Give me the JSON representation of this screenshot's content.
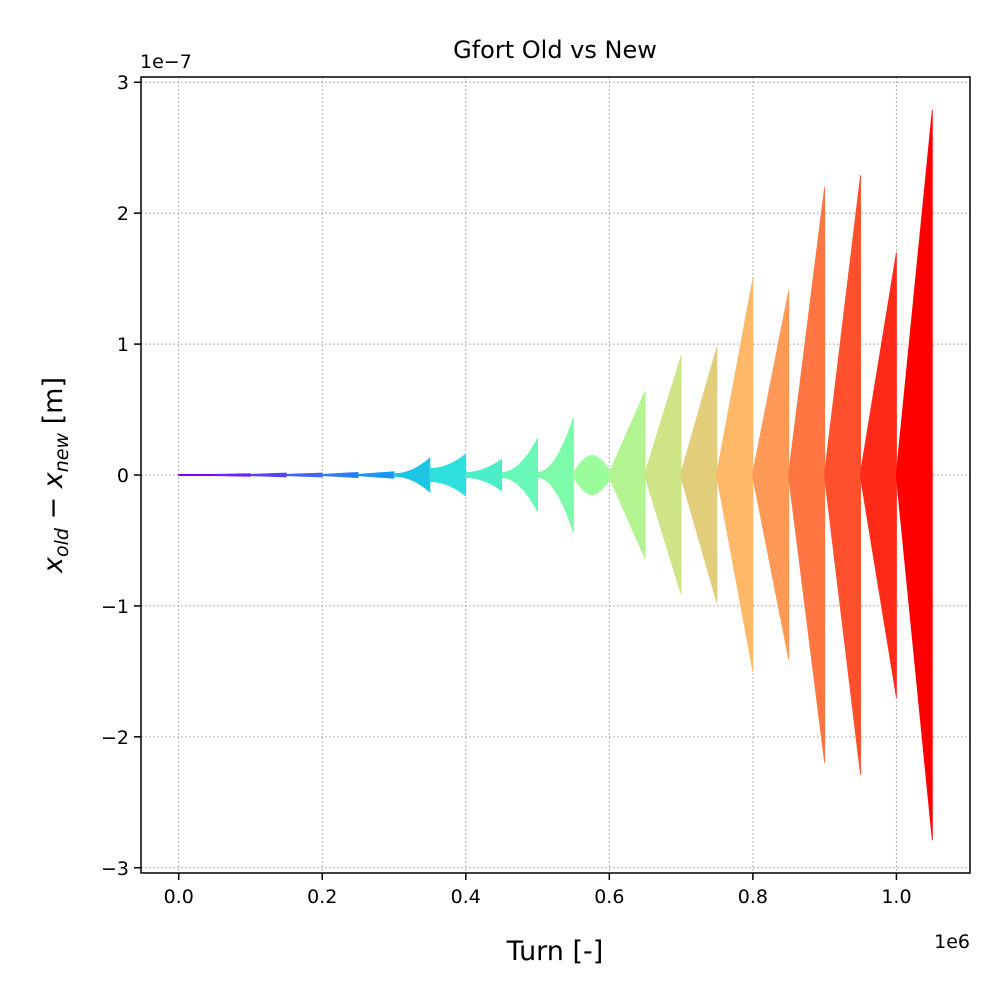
{
  "chart_data": {
    "type": "area",
    "title": "Gfort Old vs New",
    "xlabel": "Turn [-]",
    "ylabel": "x_old − x_new [m]",
    "ylabel_parts": {
      "base1": "x",
      "sub1": "old",
      "op": " − ",
      "base2": "x",
      "sub2": "new",
      "unit": " [m]"
    },
    "x_scale_label": "1e6",
    "y_scale_label": "1e−7",
    "xlim": [
      -0.0525,
      1.1025
    ],
    "ylim": [
      -3.04,
      3.04
    ],
    "xticks": [
      0.0,
      0.2,
      0.4,
      0.6,
      0.8,
      1.0
    ],
    "xtick_labels": [
      "0.0",
      "0.2",
      "0.4",
      "0.6",
      "0.8",
      "1.0"
    ],
    "yticks": [
      -3,
      -2,
      -1,
      0,
      1,
      2,
      3
    ],
    "ytick_labels": [
      "−3",
      "−2",
      "−1",
      "0",
      "1",
      "2",
      "3"
    ],
    "grid": true,
    "series": [
      {
        "x_start": 0.0,
        "x_end": 0.05,
        "amp_start": 0.005,
        "amp_end": 0.005,
        "shape": "linear",
        "color": "#7f00ff"
      },
      {
        "x_start": 0.05,
        "x_end": 0.1,
        "amp_start": 0.005,
        "amp_end": 0.01,
        "shape": "linear",
        "color": "#6a22fe"
      },
      {
        "x_start": 0.1,
        "x_end": 0.15,
        "amp_start": 0.005,
        "amp_end": 0.015,
        "shape": "linear",
        "color": "#5543fc"
      },
      {
        "x_start": 0.15,
        "x_end": 0.2,
        "amp_start": 0.005,
        "amp_end": 0.015,
        "shape": "linear",
        "color": "#4064f8"
      },
      {
        "x_start": 0.2,
        "x_end": 0.25,
        "amp_start": 0.005,
        "amp_end": 0.02,
        "shape": "linear",
        "color": "#2c7ef2"
      },
      {
        "x_start": 0.25,
        "x_end": 0.3,
        "amp_start": 0.005,
        "amp_end": 0.025,
        "shape": "linear",
        "color": "#1996f3"
      },
      {
        "x_start": 0.3,
        "x_end": 0.35,
        "amp_start": 0.01,
        "amp_end": 0.13,
        "shape": "concave",
        "color": "#1ec5e2"
      },
      {
        "x_start": 0.35,
        "x_end": 0.4,
        "amp_start": 0.05,
        "amp_end": 0.16,
        "shape": "concave",
        "color": "#2ee0db"
      },
      {
        "x_start": 0.4,
        "x_end": 0.45,
        "amp_start": 0.02,
        "amp_end": 0.12,
        "shape": "concave",
        "color": "#4ceec9"
      },
      {
        "x_start": 0.45,
        "x_end": 0.5,
        "amp_start": 0.02,
        "amp_end": 0.28,
        "shape": "concave",
        "color": "#69f8b7"
      },
      {
        "x_start": 0.5,
        "x_end": 0.55,
        "amp_start": 0.02,
        "amp_end": 0.44,
        "shape": "concave",
        "color": "#7dfbaa"
      },
      {
        "x_start": 0.55,
        "x_end": 0.6,
        "amp_start": 0.02,
        "amp_end": 0.16,
        "shape": "bulge",
        "color": "#9bfc9c"
      },
      {
        "x_start": 0.6,
        "x_end": 0.65,
        "amp_start": 0.02,
        "amp_end": 0.64,
        "shape": "linear",
        "color": "#b3f490"
      },
      {
        "x_start": 0.65,
        "x_end": 0.7,
        "amp_start": 0.02,
        "amp_end": 0.91,
        "shape": "linear",
        "color": "#cfe487"
      },
      {
        "x_start": 0.7,
        "x_end": 0.75,
        "amp_start": 0.02,
        "amp_end": 0.98,
        "shape": "linear",
        "color": "#e2cd7b"
      },
      {
        "x_start": 0.75,
        "x_end": 0.8,
        "amp_start": 0.02,
        "amp_end": 1.5,
        "shape": "linear",
        "color": "#ffb768"
      },
      {
        "x_start": 0.8,
        "x_end": 0.85,
        "amp_start": 0.02,
        "amp_end": 1.41,
        "shape": "linear",
        "color": "#ff9957"
      },
      {
        "x_start": 0.85,
        "x_end": 0.9,
        "amp_start": 0.02,
        "amp_end": 2.2,
        "shape": "linear",
        "color": "#ff7643"
      },
      {
        "x_start": 0.9,
        "x_end": 0.95,
        "amp_start": 0.02,
        "amp_end": 2.29,
        "shape": "linear",
        "color": "#ff502d"
      },
      {
        "x_start": 0.95,
        "x_end": 1.0,
        "amp_start": 0.02,
        "amp_end": 1.7,
        "shape": "linear",
        "color": "#ff2a18"
      },
      {
        "x_start": 1.0,
        "x_end": 1.05,
        "amp_start": 0.02,
        "amp_end": 2.79,
        "shape": "linear",
        "color": "#ff0000"
      }
    ]
  }
}
